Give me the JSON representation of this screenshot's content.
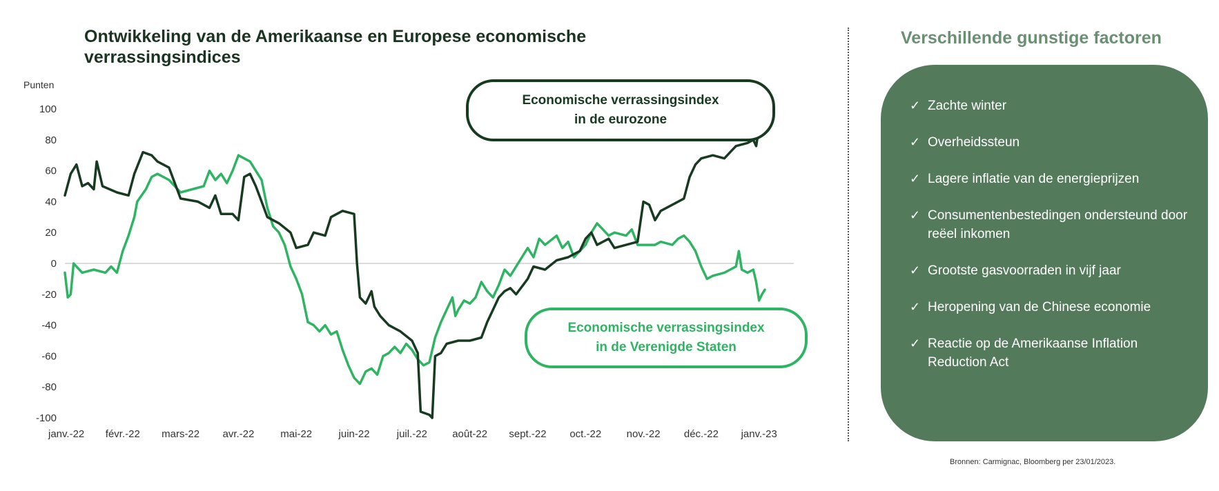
{
  "title": "Ontwikkeling van de Amerikaanse en Europese economische verrassingsindices",
  "panel": {
    "title": "Verschillende gunstige factoren",
    "items": [
      "Zachte winter",
      "Overheidssteun",
      "Lagere inflatie van de energieprijzen",
      "Consumentenbestedingen ondersteund door reëel inkomen",
      "Grootste gasvoorraden in vijf jaar",
      "Heropening van de Chinese economie",
      "Reactie op de Amerikaanse Inflation Reduction Act"
    ]
  },
  "source": "Bronnen: Carmignac, Bloomberg per 23/01/2023.",
  "callouts": {
    "eurozone": [
      "Economische verrassingsindex",
      "in de eurozone"
    ],
    "us": [
      "Economische verrassingsindex",
      "in de Verenigde Staten"
    ]
  },
  "colors": {
    "eurozone": "#173a20",
    "us": "#2fb463",
    "panel": "#547a5c",
    "title": "#1b3321",
    "panel_title": "#6a8f73"
  },
  "chart_data": {
    "type": "line",
    "title": "Ontwikkeling van de Amerikaanse en Europese economische verrassingsindices",
    "ylabel": "Punten",
    "xlabel": "",
    "ylim": [
      -100,
      100
    ],
    "yticks": [
      100,
      80,
      60,
      40,
      20,
      0,
      -20,
      -40,
      -60,
      -80,
      -100
    ],
    "xlim": [
      0,
      12.6
    ],
    "x_ticks": [
      {
        "label": "janv.-22",
        "x": 0
      },
      {
        "label": "févr.-22",
        "x": 1
      },
      {
        "label": "mars-22",
        "x": 2
      },
      {
        "label": "avr.-22",
        "x": 3
      },
      {
        "label": "mai-22",
        "x": 4
      },
      {
        "label": "juin-22",
        "x": 5
      },
      {
        "label": "juil.-22",
        "x": 6
      },
      {
        "label": "août-22",
        "x": 7
      },
      {
        "label": "sept.-22",
        "x": 8
      },
      {
        "label": "oct.-22",
        "x": 9
      },
      {
        "label": "nov.-22",
        "x": 10
      },
      {
        "label": "déc.-22",
        "x": 11
      },
      {
        "label": "janv.-23",
        "x": 12
      }
    ],
    "series": [
      {
        "name": "Economische verrassingsindex in de eurozone",
        "color": "#173a20",
        "points": [
          [
            0.0,
            44
          ],
          [
            0.1,
            58
          ],
          [
            0.2,
            64
          ],
          [
            0.3,
            50
          ],
          [
            0.4,
            52
          ],
          [
            0.5,
            48
          ],
          [
            0.55,
            66
          ],
          [
            0.65,
            50
          ],
          [
            0.9,
            46
          ],
          [
            1.1,
            44
          ],
          [
            1.2,
            58
          ],
          [
            1.35,
            72
          ],
          [
            1.5,
            70
          ],
          [
            1.6,
            66
          ],
          [
            1.8,
            62
          ],
          [
            2.0,
            42
          ],
          [
            2.3,
            40
          ],
          [
            2.5,
            36
          ],
          [
            2.6,
            44
          ],
          [
            2.7,
            32
          ],
          [
            2.9,
            32
          ],
          [
            3.0,
            28
          ],
          [
            3.1,
            56
          ],
          [
            3.2,
            58
          ],
          [
            3.3,
            50
          ],
          [
            3.4,
            40
          ],
          [
            3.5,
            30
          ],
          [
            3.7,
            26
          ],
          [
            3.9,
            20
          ],
          [
            4.0,
            10
          ],
          [
            4.2,
            12
          ],
          [
            4.3,
            20
          ],
          [
            4.5,
            18
          ],
          [
            4.6,
            30
          ],
          [
            4.8,
            34
          ],
          [
            5.0,
            32
          ],
          [
            5.05,
            0
          ],
          [
            5.1,
            -22
          ],
          [
            5.2,
            -26
          ],
          [
            5.3,
            -18
          ],
          [
            5.35,
            -28
          ],
          [
            5.45,
            -34
          ],
          [
            5.6,
            -40
          ],
          [
            5.8,
            -44
          ],
          [
            6.0,
            -50
          ],
          [
            6.1,
            -58
          ],
          [
            6.15,
            -96
          ],
          [
            6.3,
            -98
          ],
          [
            6.35,
            -100
          ],
          [
            6.4,
            -60
          ],
          [
            6.5,
            -58
          ],
          [
            6.6,
            -52
          ],
          [
            6.8,
            -50
          ],
          [
            7.0,
            -50
          ],
          [
            7.2,
            -48
          ],
          [
            7.3,
            -38
          ],
          [
            7.4,
            -30
          ],
          [
            7.5,
            -22
          ],
          [
            7.6,
            -18
          ],
          [
            7.7,
            -16
          ],
          [
            7.8,
            -20
          ],
          [
            8.0,
            -10
          ],
          [
            8.1,
            -2
          ],
          [
            8.3,
            -4
          ],
          [
            8.5,
            2
          ],
          [
            8.7,
            4
          ],
          [
            8.9,
            8
          ],
          [
            9.0,
            16
          ],
          [
            9.1,
            20
          ],
          [
            9.2,
            12
          ],
          [
            9.4,
            16
          ],
          [
            9.5,
            10
          ],
          [
            9.7,
            12
          ],
          [
            9.9,
            14
          ],
          [
            10.0,
            40
          ],
          [
            10.1,
            38
          ],
          [
            10.2,
            28
          ],
          [
            10.3,
            34
          ],
          [
            10.5,
            38
          ],
          [
            10.7,
            42
          ],
          [
            10.8,
            56
          ],
          [
            10.9,
            64
          ],
          [
            11.0,
            68
          ],
          [
            11.2,
            70
          ],
          [
            11.4,
            68
          ],
          [
            11.5,
            72
          ],
          [
            11.6,
            76
          ],
          [
            11.8,
            78
          ],
          [
            11.9,
            80
          ],
          [
            11.95,
            76
          ],
          [
            12.0,
            88
          ],
          [
            12.1,
            87
          ]
        ]
      },
      {
        "name": "Economische verrassingsindex in de Verenigde Staten",
        "color": "#2fb463",
        "points": [
          [
            0.0,
            -6
          ],
          [
            0.05,
            -22
          ],
          [
            0.1,
            -20
          ],
          [
            0.15,
            0
          ],
          [
            0.3,
            -6
          ],
          [
            0.5,
            -4
          ],
          [
            0.7,
            -6
          ],
          [
            0.8,
            -2
          ],
          [
            0.9,
            -6
          ],
          [
            1.0,
            8
          ],
          [
            1.1,
            18
          ],
          [
            1.2,
            30
          ],
          [
            1.25,
            40
          ],
          [
            1.4,
            48
          ],
          [
            1.5,
            56
          ],
          [
            1.6,
            58
          ],
          [
            1.8,
            54
          ],
          [
            2.0,
            46
          ],
          [
            2.2,
            48
          ],
          [
            2.4,
            50
          ],
          [
            2.5,
            60
          ],
          [
            2.6,
            54
          ],
          [
            2.7,
            58
          ],
          [
            2.8,
            52
          ],
          [
            2.9,
            60
          ],
          [
            3.0,
            70
          ],
          [
            3.2,
            66
          ],
          [
            3.4,
            54
          ],
          [
            3.5,
            36
          ],
          [
            3.6,
            24
          ],
          [
            3.7,
            20
          ],
          [
            3.8,
            12
          ],
          [
            3.9,
            -2
          ],
          [
            4.0,
            -10
          ],
          [
            4.1,
            -20
          ],
          [
            4.2,
            -38
          ],
          [
            4.3,
            -40
          ],
          [
            4.4,
            -44
          ],
          [
            4.5,
            -40
          ],
          [
            4.6,
            -46
          ],
          [
            4.7,
            -44
          ],
          [
            4.8,
            -56
          ],
          [
            4.9,
            -66
          ],
          [
            5.0,
            -74
          ],
          [
            5.1,
            -78
          ],
          [
            5.2,
            -70
          ],
          [
            5.3,
            -68
          ],
          [
            5.4,
            -72
          ],
          [
            5.5,
            -60
          ],
          [
            5.6,
            -58
          ],
          [
            5.7,
            -54
          ],
          [
            5.8,
            -58
          ],
          [
            5.9,
            -52
          ],
          [
            6.0,
            -56
          ],
          [
            6.1,
            -62
          ],
          [
            6.2,
            -66
          ],
          [
            6.3,
            -64
          ],
          [
            6.4,
            -48
          ],
          [
            6.5,
            -38
          ],
          [
            6.6,
            -30
          ],
          [
            6.7,
            -22
          ],
          [
            6.75,
            -34
          ],
          [
            6.8,
            -30
          ],
          [
            6.9,
            -24
          ],
          [
            7.0,
            -26
          ],
          [
            7.1,
            -22
          ],
          [
            7.2,
            -12
          ],
          [
            7.3,
            -18
          ],
          [
            7.4,
            -22
          ],
          [
            7.5,
            -14
          ],
          [
            7.6,
            -4
          ],
          [
            7.7,
            -8
          ],
          [
            7.8,
            -2
          ],
          [
            7.9,
            4
          ],
          [
            8.0,
            10
          ],
          [
            8.1,
            4
          ],
          [
            8.2,
            16
          ],
          [
            8.3,
            12
          ],
          [
            8.5,
            18
          ],
          [
            8.6,
            10
          ],
          [
            8.7,
            14
          ],
          [
            8.8,
            4
          ],
          [
            9.0,
            12
          ],
          [
            9.1,
            20
          ],
          [
            9.2,
            26
          ],
          [
            9.3,
            22
          ],
          [
            9.4,
            18
          ],
          [
            9.5,
            20
          ],
          [
            9.7,
            18
          ],
          [
            9.8,
            22
          ],
          [
            9.9,
            12
          ],
          [
            10.0,
            12
          ],
          [
            10.2,
            12
          ],
          [
            10.3,
            14
          ],
          [
            10.5,
            12
          ],
          [
            10.6,
            16
          ],
          [
            10.7,
            18
          ],
          [
            10.8,
            14
          ],
          [
            10.9,
            8
          ],
          [
            11.0,
            -2
          ],
          [
            11.1,
            -10
          ],
          [
            11.2,
            -8
          ],
          [
            11.4,
            -6
          ],
          [
            11.5,
            -4
          ],
          [
            11.6,
            -2
          ],
          [
            11.65,
            8
          ],
          [
            11.7,
            -4
          ],
          [
            11.8,
            -6
          ],
          [
            11.9,
            -4
          ],
          [
            11.95,
            -12
          ],
          [
            12.0,
            -24
          ],
          [
            12.05,
            -20
          ],
          [
            12.1,
            -17
          ]
        ]
      }
    ]
  }
}
